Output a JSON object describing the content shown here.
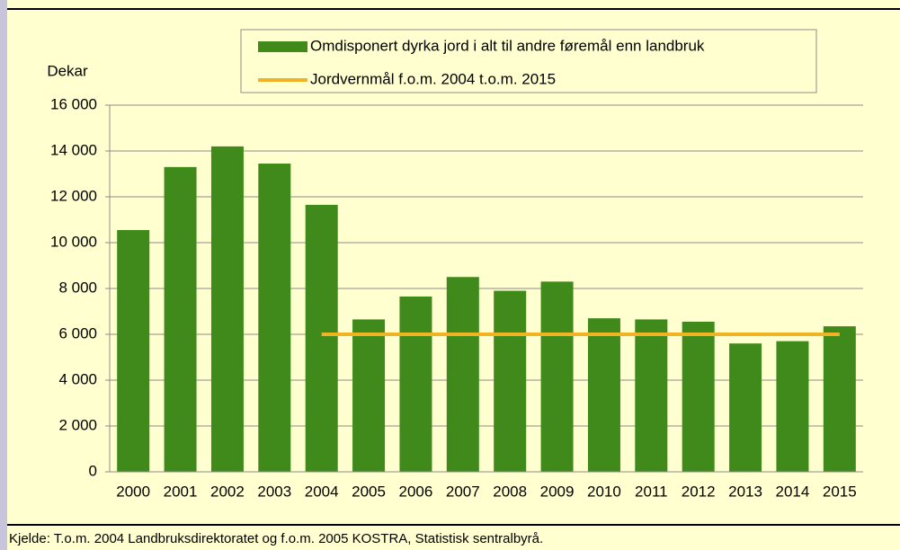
{
  "chart_data": {
    "type": "bar",
    "y_label": "Dekar",
    "source": "Kjelde: T.o.m. 2004 Landbruksdirektoratet og f.o.m. 2005 KOSTRA, Statistisk sentralbyrå.",
    "categories": [
      "2000",
      "2001",
      "2002",
      "2003",
      "2004",
      "2005",
      "2006",
      "2007",
      "2008",
      "2009",
      "2010",
      "2011",
      "2012",
      "2013",
      "2014",
      "2015"
    ],
    "series": [
      {
        "name": "Omdisponert dyrka jord i alt til andre føremål enn landbruk",
        "type": "bar",
        "color": "#3f8a1a",
        "values": [
          10550,
          13300,
          14200,
          13450,
          11650,
          6650,
          7650,
          8500,
          7900,
          8300,
          6700,
          6650,
          6550,
          5600,
          5700,
          6350
        ]
      },
      {
        "name": "Jordvernmål f.o.m. 2004 t.o.m. 2015",
        "type": "line",
        "color": "#f0b323",
        "values": [
          null,
          null,
          null,
          null,
          6000,
          6000,
          6000,
          6000,
          6000,
          6000,
          6000,
          6000,
          6000,
          6000,
          6000,
          6000
        ]
      }
    ],
    "ylim": [
      0,
      16000
    ],
    "yticks": [
      0,
      {
        "value": 2000,
        "label": "2 000"
      },
      {
        "value": 4000,
        "label": "4 000"
      },
      {
        "value": 6000,
        "label": "6 000"
      },
      {
        "value": 8000,
        "label": "8 000"
      },
      {
        "value": 10000,
        "label": "10 000"
      },
      {
        "value": 12000,
        "label": "12 000"
      },
      {
        "value": 14000,
        "label": "14 000"
      },
      {
        "value": 16000,
        "label": "16 000"
      }
    ],
    "grid": true
  }
}
